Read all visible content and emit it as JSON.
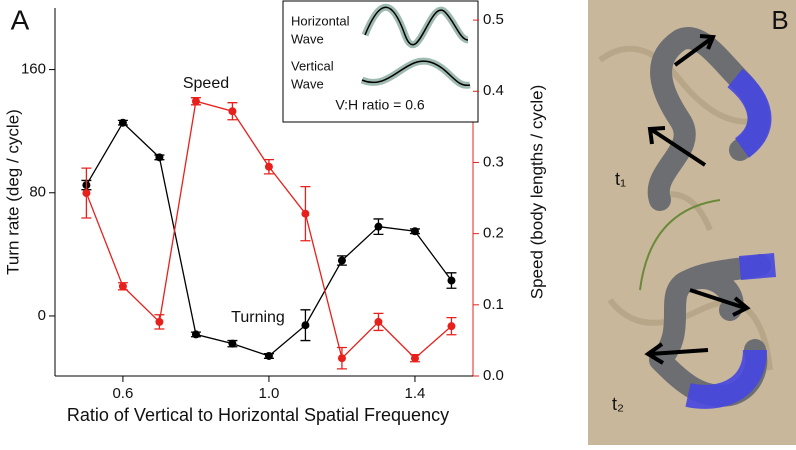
{
  "chart_data": {
    "type": "line",
    "panel_label": "A",
    "x_label": "Ratio of Vertical to Horizontal Spatial Frequency",
    "y_label": "Turn rate (deg / cycle)",
    "y2_label": "Speed (body lengths / cycle)",
    "x": [
      0.5,
      0.6,
      0.7,
      0.8,
      0.9,
      1.0,
      1.1,
      1.2,
      1.3,
      1.4,
      1.5
    ],
    "xlim": [
      0.414,
      1.559
    ],
    "xticks": [
      0.6,
      {
        "value": 1.0,
        "label": "1.0"
      },
      1.4
    ],
    "ylim": [
      -39,
      200
    ],
    "yticks": [
      0,
      80,
      160
    ],
    "y2lim": [
      0,
      0.517
    ],
    "y2ticks": [
      {
        "value": 0,
        "label": "0.0"
      },
      0.1,
      0.2,
      0.3,
      0.4,
      0.5
    ],
    "series": [
      {
        "name": "Turning",
        "color": "#000000",
        "axis": "y",
        "values": [
          85,
          125.5,
          103,
          -12,
          -18,
          -26,
          -6,
          36,
          58,
          55,
          23
        ],
        "errors": [
          3,
          1.5,
          1.5,
          1.5,
          2,
          1.5,
          10,
          3,
          5,
          1.5,
          5
        ]
      },
      {
        "name": "Speed",
        "color": "#e8201c",
        "axis": "y2",
        "values": [
          0.257,
          0.126,
          0.076,
          0.386,
          0.372,
          0.294,
          0.228,
          0.025,
          0.076,
          0.025,
          0.07
        ],
        "errors": [
          0.035,
          0.005,
          0.01,
          0.005,
          0.012,
          0.01,
          0.038,
          0.015,
          0.012,
          0.005,
          0.012
        ]
      }
    ],
    "inset": {
      "horizontal": [
        "Horizontal",
        "Wave"
      ],
      "vertical": [
        "Vertical",
        "Wave"
      ],
      "ratio": "V:H ratio = 0.6"
    }
  },
  "photo": {
    "panel_label": "B",
    "t1": "t₁",
    "t2": "t₂"
  }
}
